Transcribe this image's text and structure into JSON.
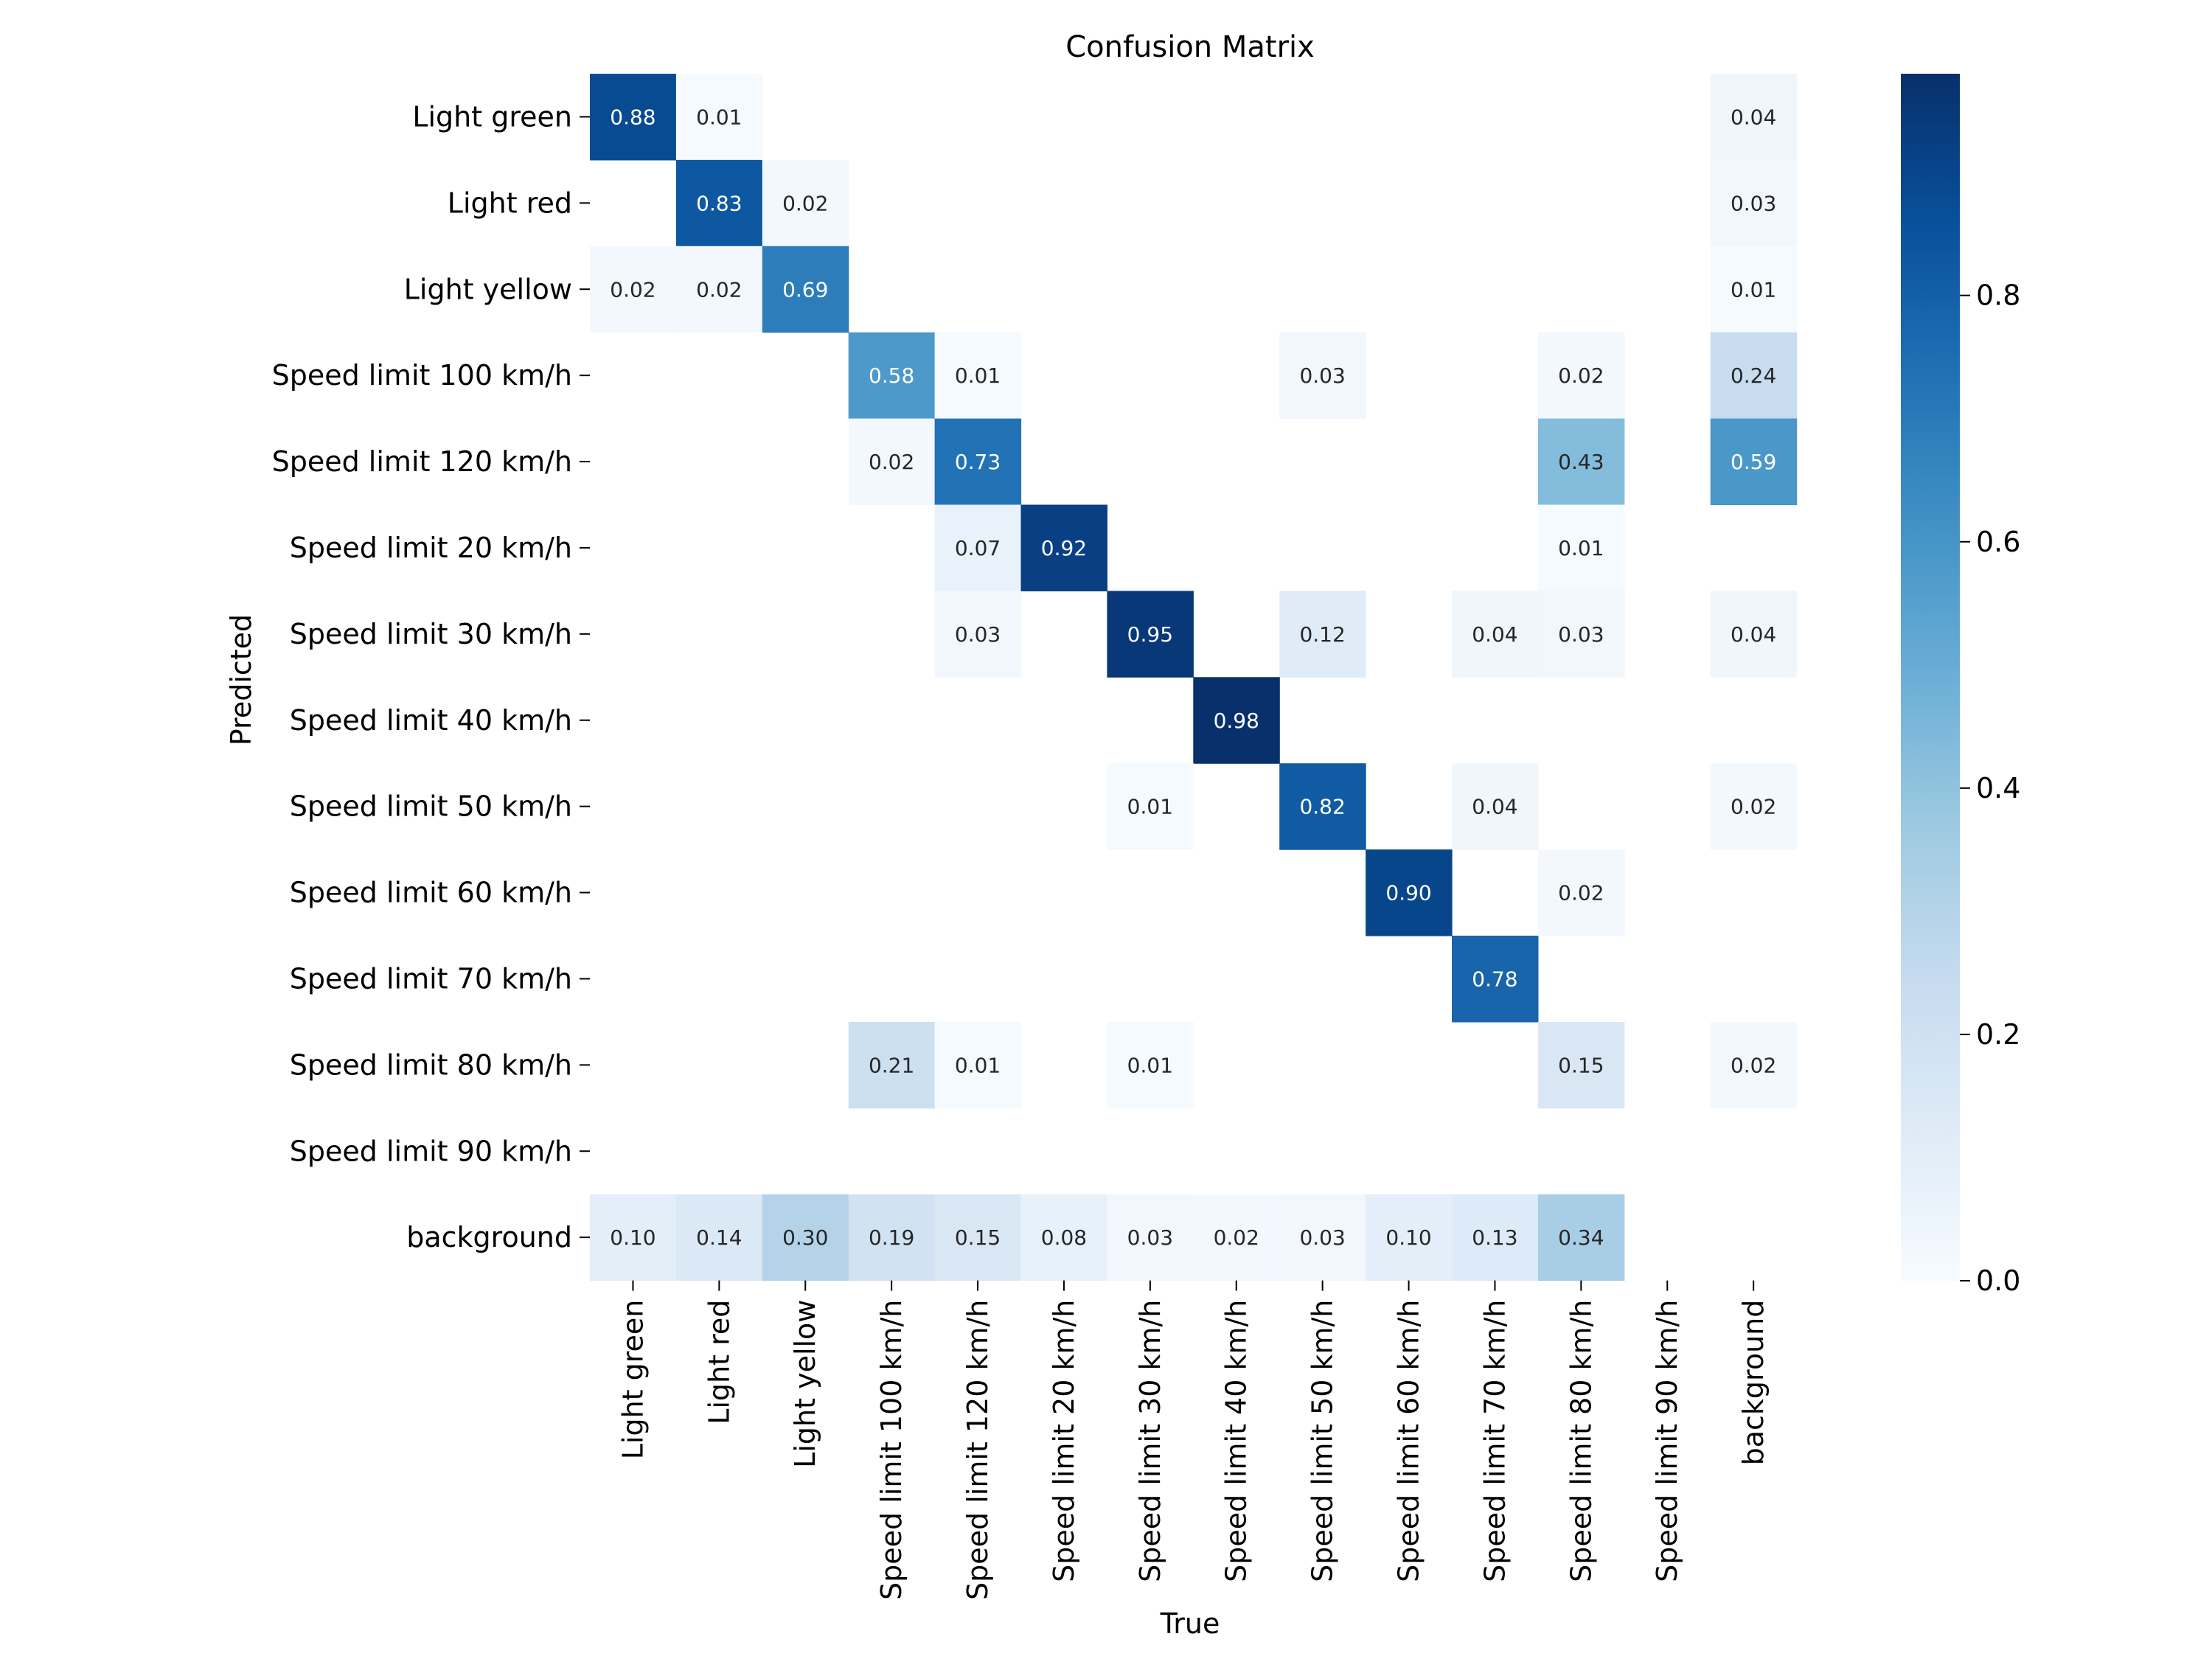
{
  "chart_data": {
    "type": "heatmap",
    "title": "Confusion Matrix",
    "xlabel": "True",
    "ylabel": "Predicted",
    "labels": [
      "Light green",
      "Light red",
      "Light yellow",
      "Speed limit 100 km/h",
      "Speed limit 120 km/h",
      "Speed limit 20 km/h",
      "Speed limit 30 km/h",
      "Speed limit 40 km/h",
      "Speed limit 50 km/h",
      "Speed limit 60 km/h",
      "Speed limit 70 km/h",
      "Speed limit 80 km/h",
      "Speed limit 90 km/h",
      "background"
    ],
    "matrix": [
      [
        0.88,
        0.01,
        null,
        null,
        null,
        null,
        null,
        null,
        null,
        null,
        null,
        null,
        null,
        0.04
      ],
      [
        null,
        0.83,
        0.02,
        null,
        null,
        null,
        null,
        null,
        null,
        null,
        null,
        null,
        null,
        0.03
      ],
      [
        0.02,
        0.02,
        0.69,
        null,
        null,
        null,
        null,
        null,
        null,
        null,
        null,
        null,
        null,
        0.01
      ],
      [
        null,
        null,
        null,
        0.58,
        0.01,
        null,
        null,
        null,
        0.03,
        null,
        null,
        0.02,
        null,
        0.24
      ],
      [
        null,
        null,
        null,
        0.02,
        0.73,
        null,
        null,
        null,
        null,
        null,
        null,
        0.43,
        null,
        0.59
      ],
      [
        null,
        null,
        null,
        null,
        0.07,
        0.92,
        null,
        null,
        null,
        null,
        null,
        0.01,
        null,
        null
      ],
      [
        null,
        null,
        null,
        null,
        0.03,
        null,
        0.95,
        null,
        0.12,
        null,
        0.04,
        0.03,
        null,
        0.04
      ],
      [
        null,
        null,
        null,
        null,
        null,
        null,
        null,
        0.98,
        null,
        null,
        null,
        null,
        null,
        null
      ],
      [
        null,
        null,
        null,
        null,
        null,
        null,
        0.01,
        null,
        0.82,
        null,
        0.04,
        null,
        null,
        0.02
      ],
      [
        null,
        null,
        null,
        null,
        null,
        null,
        null,
        null,
        null,
        0.9,
        null,
        0.02,
        null,
        null
      ],
      [
        null,
        null,
        null,
        null,
        null,
        null,
        null,
        null,
        null,
        null,
        0.78,
        null,
        null,
        null
      ],
      [
        null,
        null,
        null,
        0.21,
        0.01,
        null,
        0.01,
        null,
        null,
        null,
        null,
        0.15,
        null,
        0.02
      ],
      [
        null,
        null,
        null,
        null,
        null,
        null,
        null,
        null,
        null,
        null,
        null,
        null,
        null,
        null
      ],
      [
        0.1,
        0.14,
        0.3,
        0.19,
        0.15,
        0.08,
        0.03,
        0.02,
        0.03,
        0.1,
        0.13,
        0.34,
        null,
        null
      ]
    ],
    "colorbar": {
      "min": 0,
      "max": 0.98,
      "ticks": [
        "0.0",
        "0.2",
        "0.4",
        "0.6",
        "0.8"
      ]
    },
    "colormap": "Blues",
    "colors": {
      "low": "#f7fbff",
      "high": "#08306b",
      "text_dark": "#262626",
      "text_light": "#ffffff"
    }
  }
}
